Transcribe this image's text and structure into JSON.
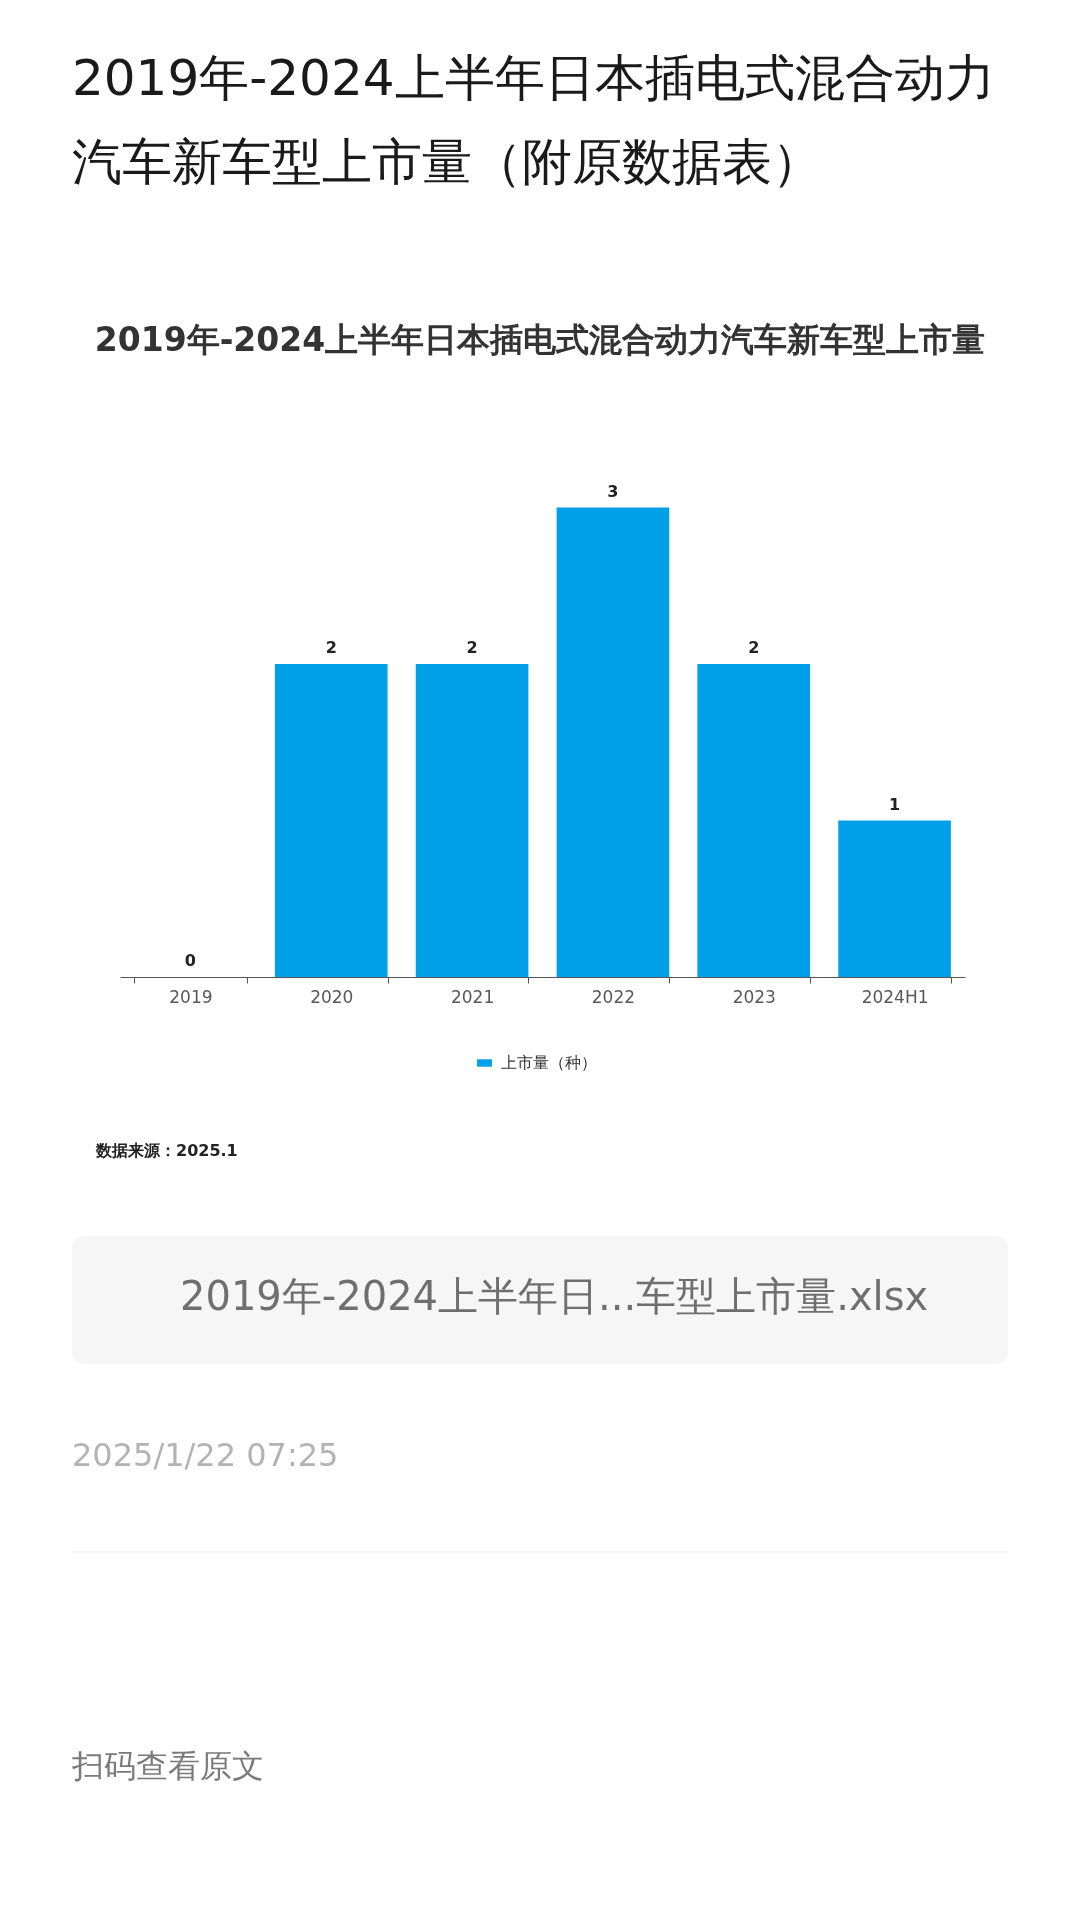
{
  "chart_data": {
    "type": "bar",
    "title": "2019年-2024上半年日本插电式混合动力汽车新车型上市量（附原数据表）",
    "subtitle": "2019年-2024上半年日本插电式混合动力汽车新车型上市量",
    "categories": [
      "2019",
      "2020",
      "2021",
      "2022",
      "2023",
      "2024H1"
    ],
    "series": [
      {
        "name": "上市量（种）",
        "color": "#00a0e9",
        "values": [
          0,
          2,
          2,
          3,
          2,
          1
        ]
      }
    ],
    "data_labels": true,
    "legend": "bottom",
    "annotations": [
      "数据来源：2025.1",
      "2019年-2024上半年日...车型上市量.xlsx",
      "2025/1/22 07:25",
      "扫码查看原文"
    ]
  }
}
